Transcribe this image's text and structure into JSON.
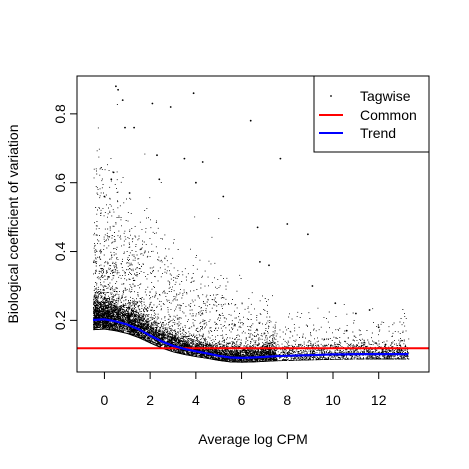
{
  "chart_data": {
    "type": "scatter",
    "title": "",
    "xlabel": "Average log CPM",
    "ylabel": "Biological coefficient of variation",
    "xlim": [
      -1.2,
      14.2
    ],
    "ylim": [
      0.05,
      0.91
    ],
    "x_ticks": [
      0,
      2,
      4,
      6,
      8,
      10,
      12
    ],
    "y_ticks": [
      0.2,
      0.4,
      0.6,
      0.8
    ],
    "grid": false,
    "legend_position": "top-right",
    "series": [
      {
        "name": "Tagwise",
        "kind": "points",
        "color": "#000000",
        "sample_points": [
          [
            0.5,
            0.88
          ],
          [
            0.6,
            0.87
          ],
          [
            0.8,
            0.84
          ],
          [
            2.1,
            0.83
          ],
          [
            2.9,
            0.82
          ],
          [
            3.9,
            0.86
          ],
          [
            0.9,
            0.76
          ],
          [
            1.3,
            0.76
          ],
          [
            6.4,
            0.78
          ],
          [
            2.3,
            0.68
          ],
          [
            3.5,
            0.67
          ],
          [
            4.3,
            0.66
          ],
          [
            7.7,
            0.67
          ],
          [
            0.4,
            0.63
          ],
          [
            0.3,
            0.61
          ],
          [
            0.0,
            0.56
          ],
          [
            1.1,
            0.57
          ],
          [
            2.4,
            0.61
          ],
          [
            4.0,
            0.6
          ],
          [
            5.2,
            0.56
          ],
          [
            8.0,
            0.48
          ],
          [
            6.7,
            0.47
          ],
          [
            8.9,
            0.45
          ],
          [
            6.8,
            0.37
          ],
          [
            7.2,
            0.36
          ],
          [
            9.1,
            0.3
          ],
          [
            10.1,
            0.25
          ],
          [
            11.0,
            0.22
          ],
          [
            11.6,
            0.23
          ],
          [
            12.0,
            0.18
          ],
          [
            10.6,
            0.17
          ],
          [
            12.3,
            0.13
          ],
          [
            12.8,
            0.11
          ]
        ]
      },
      {
        "name": "Common",
        "kind": "hline",
        "color": "#ff0000",
        "value": 0.119
      },
      {
        "name": "Trend",
        "kind": "line",
        "color": "#0000ff",
        "x": [
          -0.5,
          0.0,
          0.5,
          1.0,
          1.5,
          2.0,
          2.5,
          3.0,
          3.5,
          4.0,
          4.5,
          5.0,
          5.5,
          6.0,
          6.5,
          7.0,
          7.5,
          8.0,
          8.5,
          9.0,
          9.5,
          10.0,
          10.5,
          11.0,
          11.5,
          12.0,
          12.5,
          13.3
        ],
        "y": [
          0.201,
          0.203,
          0.197,
          0.188,
          0.174,
          0.156,
          0.139,
          0.126,
          0.117,
          0.11,
          0.104,
          0.097,
          0.092,
          0.091,
          0.092,
          0.094,
          0.096,
          0.097,
          0.098,
          0.099,
          0.1,
          0.101,
          0.101,
          0.102,
          0.102,
          0.102,
          0.102,
          0.102
        ]
      }
    ]
  }
}
